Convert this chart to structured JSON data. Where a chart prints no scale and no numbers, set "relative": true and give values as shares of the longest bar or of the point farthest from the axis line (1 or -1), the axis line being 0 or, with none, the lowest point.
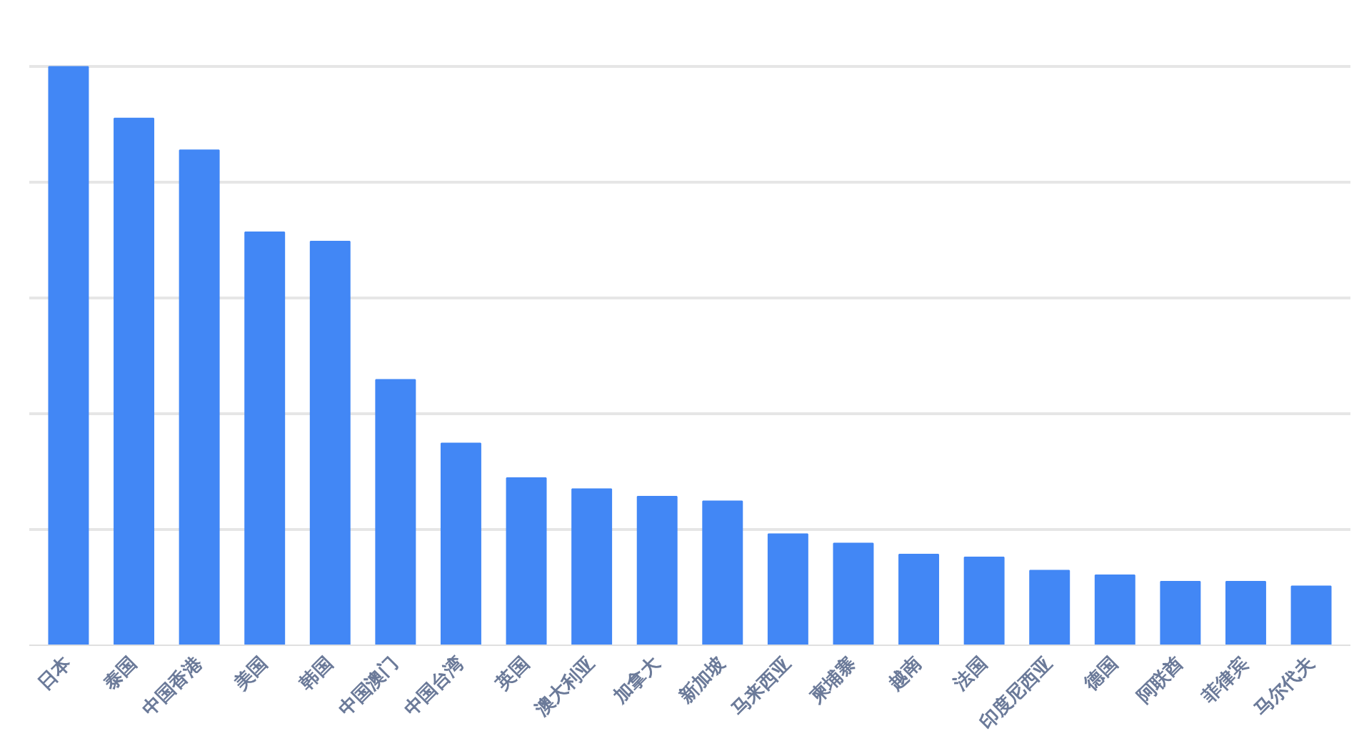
{
  "chart_data": {
    "type": "bar",
    "relative": true,
    "grid": "y",
    "color": "#4287f5",
    "categories": [
      "日本",
      "泰国",
      "中国香港",
      "美国",
      "韩国",
      "中国澳门",
      "中国台湾",
      "英国",
      "澳大利亚",
      "加拿大",
      "新加坡",
      "马来西亚",
      "柬埔寨",
      "越南",
      "法国",
      "印度尼西亚",
      "德国",
      "阿联酋",
      "菲律宾",
      "马尔代夫"
    ],
    "values": [
      1,
      0.911,
      0.856,
      0.714,
      0.698,
      0.459,
      0.349,
      0.289,
      0.27,
      0.257,
      0.249,
      0.192,
      0.176,
      0.157,
      0.152,
      0.129,
      0.121,
      0.11,
      0.11,
      0.102
    ]
  }
}
